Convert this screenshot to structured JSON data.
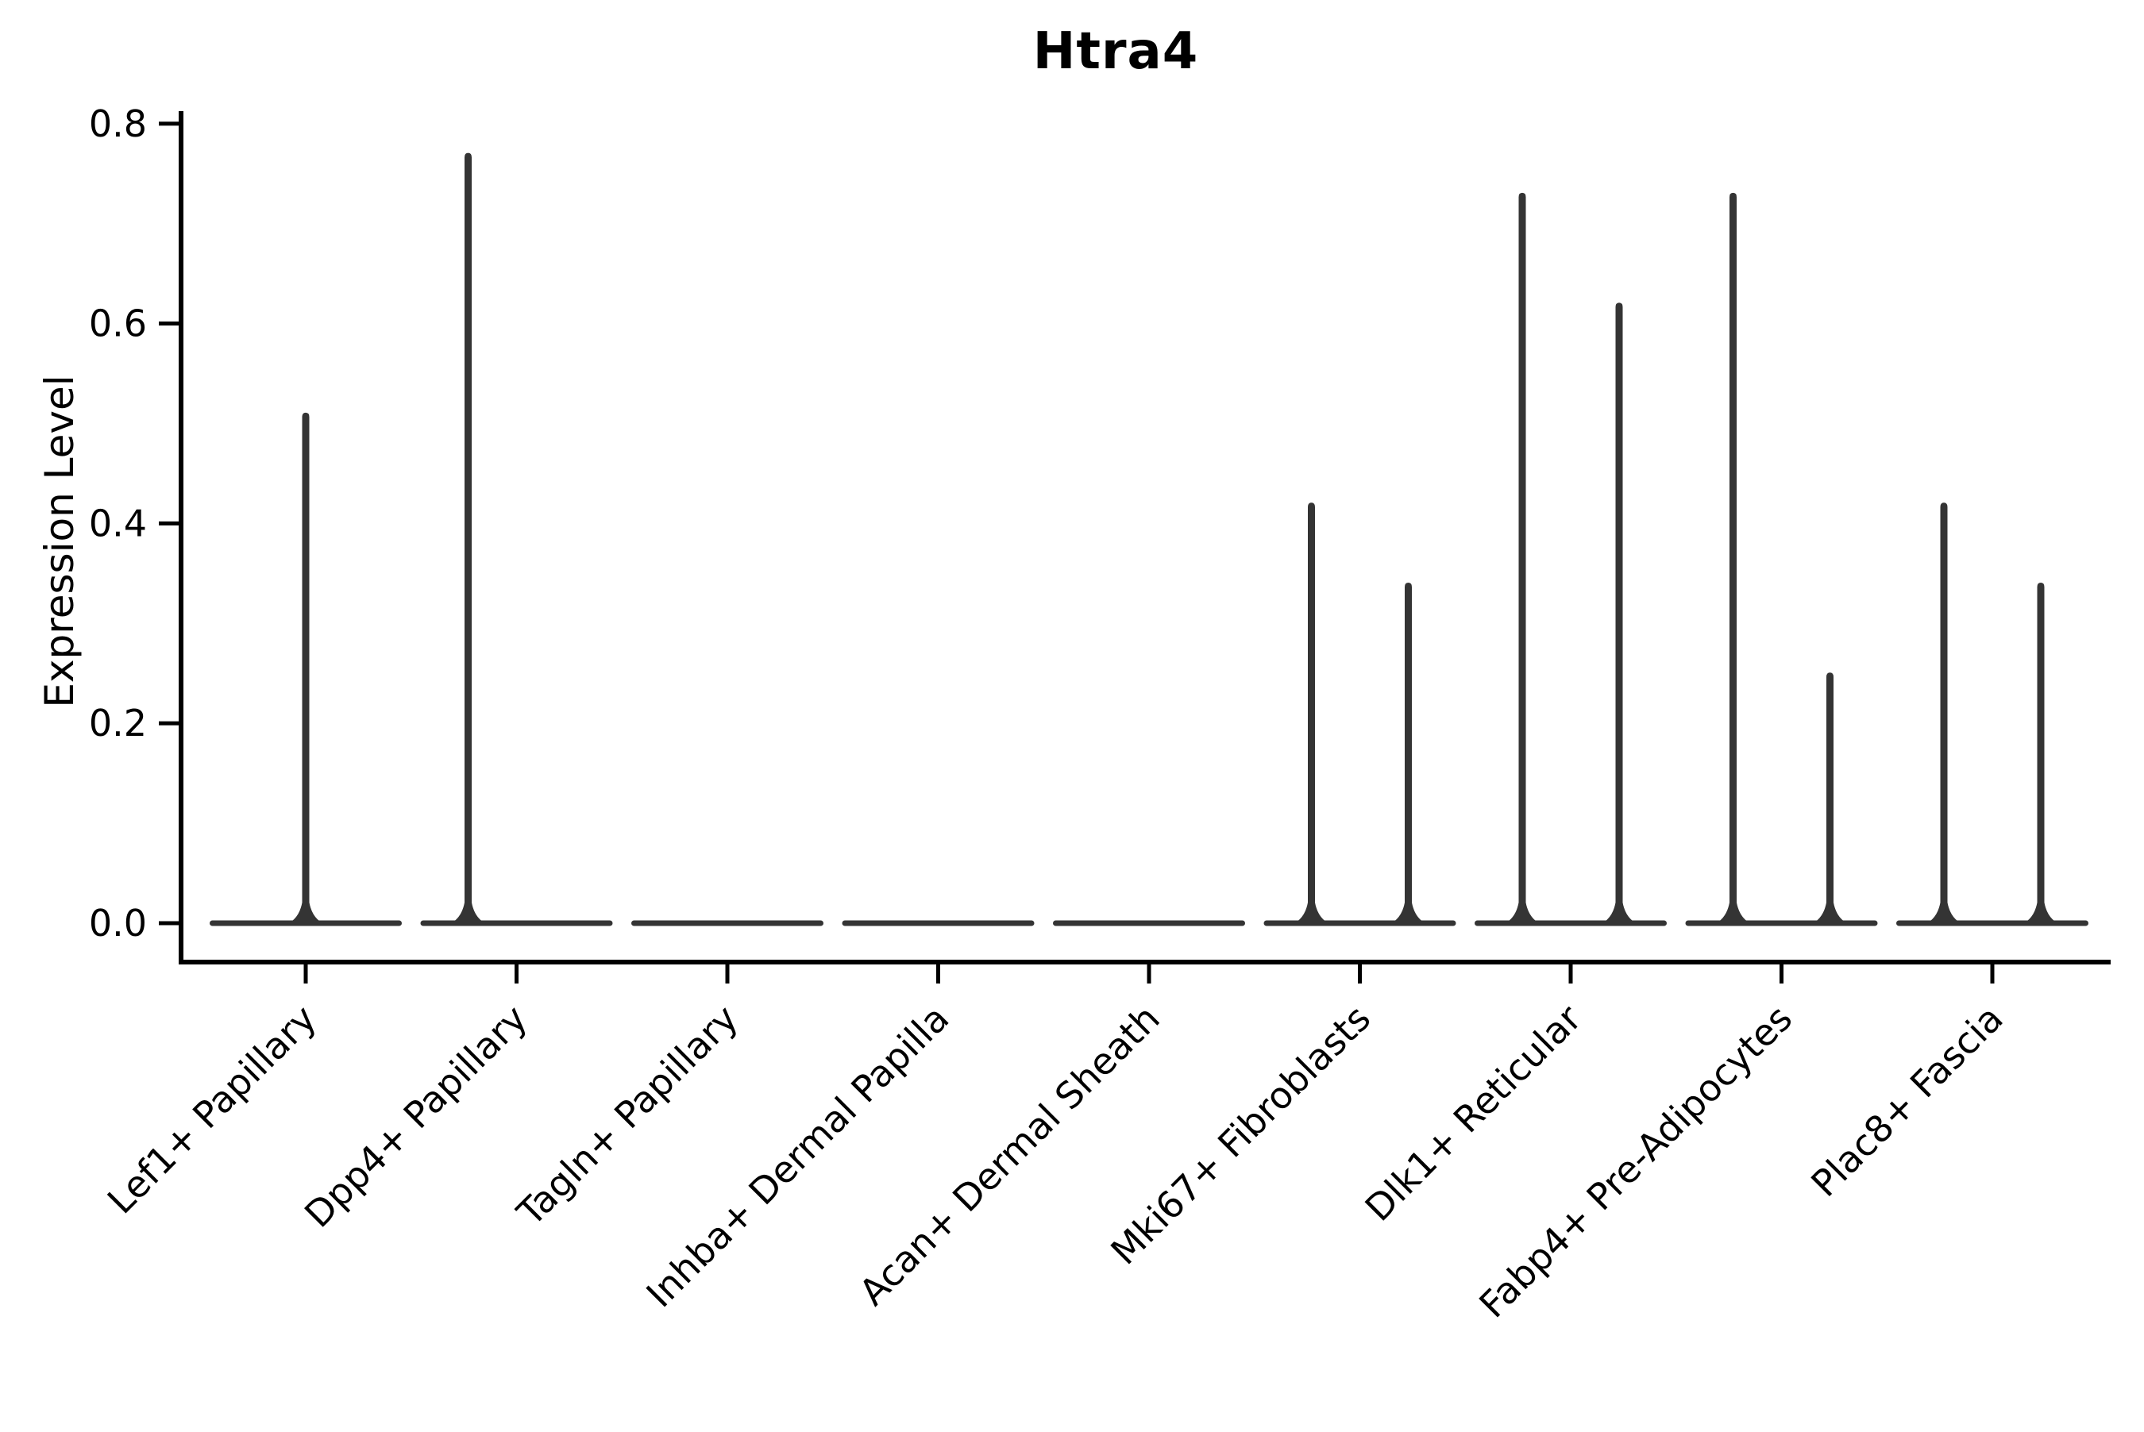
{
  "chart_data": {
    "type": "violin",
    "title": "Htra4",
    "xlabel": "",
    "ylabel": "Expression Level",
    "ylim": [
      0.0,
      0.8
    ],
    "yticks": [
      "0.0",
      "0.2",
      "0.4",
      "0.6",
      "0.8"
    ],
    "grid": false,
    "legend": null,
    "violin_color": "#343434",
    "axis_color": "#000000",
    "background_color": "#ffffff",
    "categories": [
      "Lef1+ Papillary",
      "Dpp4+ Papillary",
      "Tagln+ Papillary",
      "Inhba+ Dermal Papilla",
      "Acan+ Dermal Sheath",
      "Mki67+ Fibroblasts",
      "Dlk1+ Reticular",
      "Fabp4+ Pre-Adipocytes",
      "Plac8+ Fascia"
    ],
    "violins": [
      {
        "category": "Lef1+ Papillary",
        "baseline_value": 0.0,
        "spikes": [
          {
            "x_offset": 0,
            "max": 0.51
          }
        ]
      },
      {
        "category": "Dpp4+ Papillary",
        "baseline_value": 0.0,
        "spikes": [
          {
            "x_offset": -61,
            "max": 0.77
          }
        ]
      },
      {
        "category": "Tagln+ Papillary",
        "baseline_value": 0.0,
        "spikes": []
      },
      {
        "category": "Inhba+ Dermal Papilla",
        "baseline_value": 0.0,
        "spikes": []
      },
      {
        "category": "Acan+ Dermal Sheath",
        "baseline_value": 0.0,
        "spikes": []
      },
      {
        "category": "Mki67+ Fibroblasts",
        "baseline_value": 0.0,
        "spikes": [
          {
            "x_offset": -61,
            "max": 0.42
          },
          {
            "x_offset": 61,
            "max": 0.34
          }
        ]
      },
      {
        "category": "Dlk1+ Reticular",
        "baseline_value": 0.0,
        "spikes": [
          {
            "x_offset": -61,
            "max": 0.73
          },
          {
            "x_offset": 61,
            "max": 0.62
          }
        ]
      },
      {
        "category": "Fabp4+ Pre-Adipocytes",
        "baseline_value": 0.0,
        "spikes": [
          {
            "x_offset": -61,
            "max": 0.73
          },
          {
            "x_offset": 61,
            "max": 0.25
          }
        ]
      },
      {
        "category": "Plac8+ Fascia",
        "baseline_value": 0.0,
        "spikes": [
          {
            "x_offset": -61,
            "max": 0.42
          },
          {
            "x_offset": 61,
            "max": 0.34
          }
        ]
      }
    ]
  }
}
